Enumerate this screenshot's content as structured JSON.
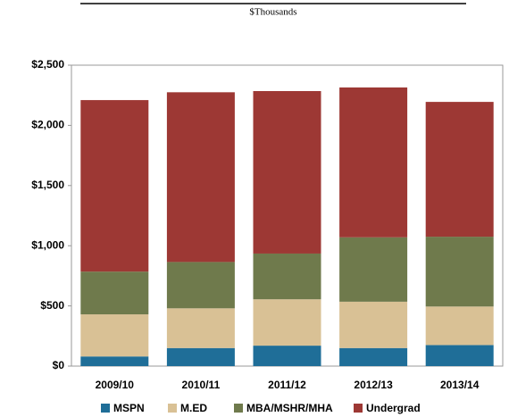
{
  "chart_data": {
    "type": "bar",
    "stacked": true,
    "subtitle": "$Thousands",
    "categories": [
      "2009/10",
      "2010/11",
      "2011/12",
      "2012/13",
      "2013/14"
    ],
    "series": [
      {
        "name": "MSPN",
        "color": "#1f6e98",
        "values": [
          80,
          150,
          170,
          150,
          175
        ]
      },
      {
        "name": "M.ED",
        "color": "#d9c195",
        "values": [
          350,
          330,
          385,
          385,
          320
        ]
      },
      {
        "name": "MBA/MSHR/MHA",
        "color": "#6f7a4c",
        "values": [
          355,
          385,
          380,
          535,
          580
        ]
      },
      {
        "name": "Undergrad",
        "color": "#9d3834",
        "values": [
          1425,
          1410,
          1350,
          1245,
          1120
        ]
      }
    ],
    "ylim": [
      0,
      2500
    ],
    "yticks": [
      {
        "value": 0,
        "label": "$0"
      },
      {
        "value": 500,
        "label": "$500"
      },
      {
        "value": 1000,
        "label": "$1,000"
      },
      {
        "value": 1500,
        "label": "$1,500"
      },
      {
        "value": 2000,
        "label": "$2,000"
      },
      {
        "value": 2500,
        "label": "$2,500"
      }
    ],
    "legend": "bottom"
  }
}
